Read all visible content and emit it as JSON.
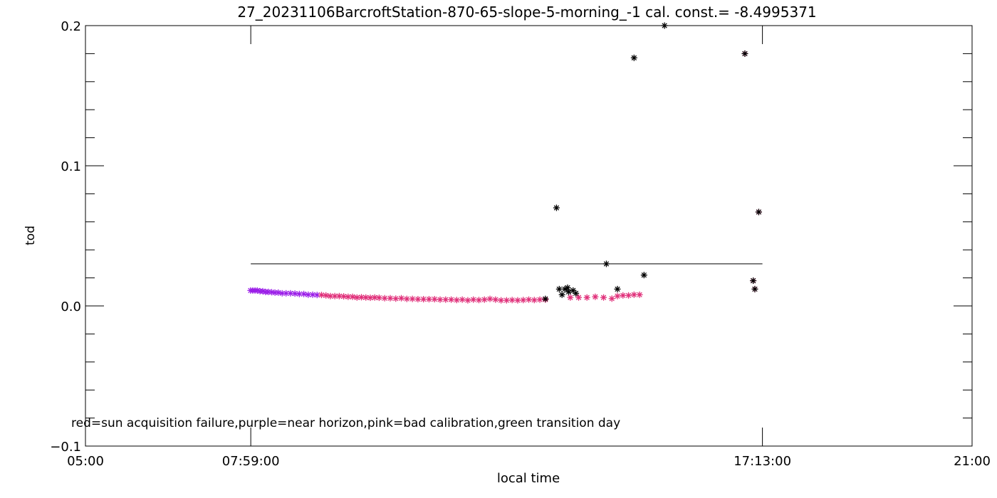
{
  "chart_data": {
    "type": "scatter",
    "title": "27_20231106BarcroftStation-870-65-slope-5-morning_-1 cal. const.= -8.4995371",
    "xlabel": "local time",
    "ylabel": "tod",
    "x_ticks": [
      {
        "value": 5.0,
        "label": "05:00"
      },
      {
        "value": 7.9833,
        "label": "07:59:00"
      },
      {
        "value": 17.2167,
        "label": "17:13:00"
      },
      {
        "value": 21.0,
        "label": "21:00"
      }
    ],
    "y_ticks": [
      {
        "value": -0.1,
        "label": "−0.1"
      },
      {
        "value": 0.0,
        "label": "0.0"
      },
      {
        "value": 0.1,
        "label": "0.1"
      },
      {
        "value": 0.2,
        "label": "0.2"
      }
    ],
    "xlim": [
      5.0,
      21.0
    ],
    "ylim": [
      -0.1,
      0.2
    ],
    "x_unit": "hours",
    "reference_line": {
      "x": [
        7.9833,
        17.2167
      ],
      "y": 0.03
    },
    "annotation": "red=sun acquisition failure,purple=near horizon,pink=bad calibration,green transition day",
    "colors": {
      "black": "#000000",
      "purple": "#9b1fe8",
      "pink": "#e0307a"
    },
    "series": [
      {
        "color": "purple",
        "x": [
          7.98,
          8.02,
          8.06,
          8.1,
          8.15,
          8.2,
          8.25,
          8.3,
          8.36,
          8.42,
          8.48,
          8.55,
          8.62,
          8.7,
          8.78,
          8.86,
          8.94,
          9.02,
          9.1,
          9.18
        ],
        "y": [
          0.011,
          0.011,
          0.011,
          0.011,
          0.0105,
          0.0105,
          0.01,
          0.01,
          0.0098,
          0.0095,
          0.0095,
          0.009,
          0.009,
          0.009,
          0.0088,
          0.0085,
          0.0085,
          0.008,
          0.008,
          0.0078
        ]
      },
      {
        "color": "pink",
        "x": [
          9.26,
          9.34,
          9.42,
          9.5,
          9.58,
          9.66,
          9.74,
          9.82,
          9.9,
          9.98,
          10.06,
          10.14,
          10.22,
          10.3,
          10.4,
          10.5,
          10.6,
          10.7,
          10.8,
          10.9,
          11.0,
          11.1,
          11.2,
          11.3,
          11.4,
          11.5,
          11.6,
          11.7,
          11.8,
          11.9,
          12.0,
          12.1,
          12.2,
          12.3,
          12.4,
          12.5,
          12.6,
          12.7,
          12.8,
          12.9,
          13.0,
          13.1,
          13.2,
          13.3,
          13.75,
          13.9,
          14.05,
          14.2,
          14.35,
          14.5,
          14.6,
          14.7,
          14.8,
          14.9,
          15.0,
          16.9,
          17.05,
          17.08,
          17.15
        ],
        "y": [
          0.0078,
          0.0075,
          0.007,
          0.007,
          0.007,
          0.0068,
          0.0065,
          0.0065,
          0.006,
          0.0062,
          0.006,
          0.0058,
          0.006,
          0.0058,
          0.0055,
          0.0055,
          0.0052,
          0.0055,
          0.005,
          0.005,
          0.0048,
          0.0048,
          0.0048,
          0.0048,
          0.0045,
          0.0045,
          0.0045,
          0.0042,
          0.0045,
          0.004,
          0.0045,
          0.0042,
          0.0045,
          0.005,
          0.0045,
          0.004,
          0.004,
          0.0042,
          0.004,
          0.0042,
          0.0045,
          0.0042,
          0.0045,
          0.0045,
          0.006,
          0.006,
          0.006,
          0.0065,
          0.006,
          0.0052,
          0.007,
          0.0075,
          0.0075,
          0.008,
          0.008,
          0.18,
          0.018,
          0.012,
          0.067
        ]
      },
      {
        "color": "black",
        "x": [
          13.3,
          13.5,
          13.55,
          13.6,
          13.65,
          13.7,
          13.72,
          13.8,
          13.85,
          14.4,
          14.6,
          14.9,
          15.08,
          15.45,
          16.9,
          17.05,
          17.08,
          17.15
        ],
        "y": [
          0.005,
          0.07,
          0.012,
          0.008,
          0.012,
          0.013,
          0.01,
          0.011,
          0.009,
          0.03,
          0.012,
          0.177,
          0.022,
          0.2,
          0.18,
          0.018,
          0.012,
          0.067
        ]
      }
    ]
  }
}
